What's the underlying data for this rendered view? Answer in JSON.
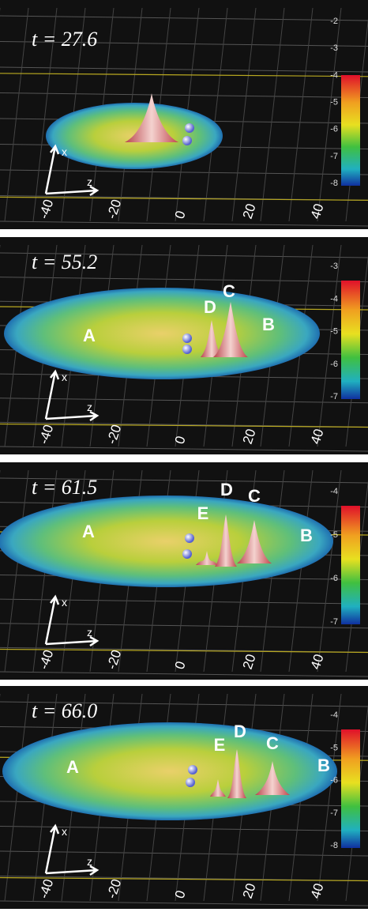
{
  "panels": [
    {
      "time_label": "t = 27.6",
      "peak_labels": [],
      "axis_labels": {
        "x": "x",
        "z": "z"
      },
      "bottom_ticks": [
        "-40",
        "-20",
        "0",
        "20",
        "40"
      ],
      "colorbar_ticks": [
        "-2",
        "-3",
        "-4",
        "-5",
        "-6",
        "-7",
        "-8"
      ]
    },
    {
      "time_label": "t = 55.2",
      "peak_labels": [
        "A",
        "B",
        "C",
        "D"
      ],
      "axis_labels": {
        "x": "x",
        "z": "z"
      },
      "bottom_ticks": [
        "-40",
        "-20",
        "0",
        "20",
        "40"
      ],
      "colorbar_ticks": [
        "-3",
        "-4",
        "-5",
        "-6",
        "-7"
      ]
    },
    {
      "time_label": "t = 61.5",
      "peak_labels": [
        "A",
        "B",
        "C",
        "D",
        "E"
      ],
      "axis_labels": {
        "x": "x",
        "z": "z"
      },
      "bottom_ticks": [
        "-40",
        "-20",
        "0",
        "20",
        "40"
      ],
      "colorbar_ticks": [
        "-4",
        "-5",
        "-6",
        "-7"
      ]
    },
    {
      "time_label": "t = 66.0",
      "peak_labels": [
        "A",
        "B",
        "C",
        "D",
        "E"
      ],
      "axis_labels": {
        "x": "x",
        "z": "z"
      },
      "bottom_ticks": [
        "-40",
        "-20",
        "0",
        "20",
        "40"
      ],
      "colorbar_ticks": [
        "-4",
        "-5",
        "-6",
        "-7",
        "-8"
      ]
    }
  ]
}
